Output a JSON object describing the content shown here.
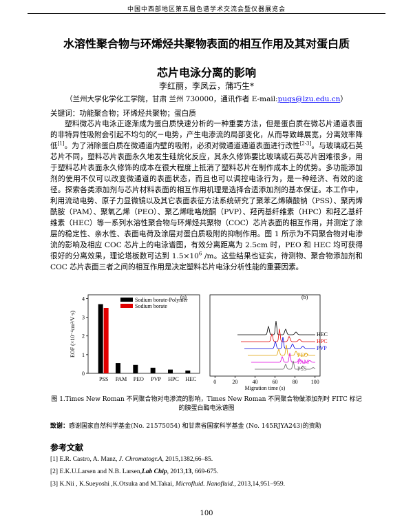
{
  "header": "中国中西部地区第五届色谱学术交流会暨仪器展览会",
  "title": [
    "水溶性聚合物与环烯烃共聚物表面的相互作用及其对蛋白质",
    "芯片电泳分离的影响"
  ],
  "authors": "李红丽，李凤云，蒲巧生*",
  "affiliation": [
    "（兰州大学化学化工学院，甘肃 兰州 730000，通讯作者 E-mail:",
    "puqs@lzu.edu.cn",
    "）"
  ],
  "keywords": "关键词：功能聚合物；环烯烃共聚物；蛋白质",
  "body": [
    "塑料微芯片电泳正逐渐成为蛋白质快速分析的一种重要方法，但是蛋白质在微芯片通道表面的非特异性吸附会引起不均匀的ζ－电势，产生电渗流的局部变化，从而导致峰展宽，分离效率降低",
    "[1]",
    "。为了消除蛋白质在微通道内壁的吸附，必须对微通道通道表面进行改性",
    "[2-3]",
    "。与玻璃或石英芯片不同，塑料芯片表面永久地发生硅烷化反应，其永久修饰要比玻璃或石英芯片困难很多，用于塑料芯片表面永久修饰的成本在很大程度上抵消了塑料芯片在制作成本上的优势。多功能添加剂的使用不仅可以改变微通道的表面状态，而且也可以调控电泳行为，是一种经济、有效的途径。探索各类添加剂与芯片材料表面的相互作用机理是选择合适添加剂的基本保证。本工作中，利用流动电势、原子力显微镜以及其它表面表征方法系统研究了聚苯乙烯磺酸钠（PSS）、聚丙烯酰胺（PAM）、聚氧乙烯（PEO）、聚乙烯吡咯烷酮（PVP）、羟丙基纤维素（HPC）和羟乙基纤维素（HEC）等一系列水溶性聚合物与环烯烃共聚物（COC）芯片表面的相互作用，并测定了涂层的稳定性、亲水性、表面电荷及涂层对蛋白质吸附的抑制作用。图 1 所示为不同聚合物对电渗流的影响及相应 COC 芯片上的电泳谱图，有效分离距离为 2.5cm 时，PEO 和 HEC 均可获得很好的分离效果，理论塔板数可达到 1.5×10",
    "6",
    " /m。这些结果也证实，待测物、聚合物添加剂和 COC 芯片表面三者之间的相互作用是决定塑料芯片电泳分析性能的重要因素。"
  ],
  "chart_data": [
    {
      "type": "bar",
      "label": "(a)",
      "y_label": "EOF (×10⁻⁴cm²/V·s)",
      "categories": [
        "PSS",
        "PAM",
        "PEO",
        "PVP",
        "HPC",
        "HEC"
      ],
      "series": [
        {
          "name": "Sodium borate-Polymer",
          "color": "#000000",
          "values": [
            3.7,
            0.55,
            0.45,
            0.3,
            0.2,
            0.15
          ]
        },
        {
          "name": "Sodium borate",
          "color": "#e00000",
          "values": [
            3.5,
            null,
            null,
            null,
            null,
            null
          ]
        }
      ],
      "ylim": [
        0,
        4.2
      ],
      "yticks": [
        0,
        1,
        2,
        3,
        4
      ]
    },
    {
      "type": "line",
      "label": "(b)",
      "x_label": "Migration time (s)",
      "xlim": [
        -5,
        105
      ],
      "xticks": [
        0,
        20,
        40,
        60,
        80,
        100
      ],
      "series": [
        {
          "name": "HEC",
          "color": "#000000"
        },
        {
          "name": "HPC",
          "color": "#e00000"
        },
        {
          "name": "PVP",
          "color": "#0000e0"
        },
        {
          "name": "PEO",
          "color": "#e0a000"
        },
        {
          "name": "PAM",
          "color": "#e000e0"
        },
        {
          "name": "PSS",
          "color": "#606060"
        }
      ]
    }
  ],
  "caption": "图 1.Times New Roman 不同聚合物对电渗流的影响，Times New Roman 不同聚合物做添加剂时 FITC 标记的胰蛋白酶电泳谱图",
  "funding": [
    "致谢：",
    "感谢国家自然科学基金(No. 21575054) 和甘肃省国家科学基金 (No. 145RJYA243)的资助"
  ],
  "references_title": "参考文献",
  "references": [
    [
      "[1] E.R. Castro, A. Manz, ",
      "J. Chromatogr.A",
      ", 2015,1382,66–85."
    ],
    [
      "[2] E.K.U.Larsen and N.B. Larsen,",
      "Lab Chip",
      ", 2013,",
      "13",
      ", 669-675."
    ],
    [
      "[3] K.Nii , K.Sueyoshi ,K.Otsuka and M.Takai, ",
      "Microfluid. Nanofluid.",
      ", 2013,14,951–959."
    ]
  ],
  "page_number": "100"
}
